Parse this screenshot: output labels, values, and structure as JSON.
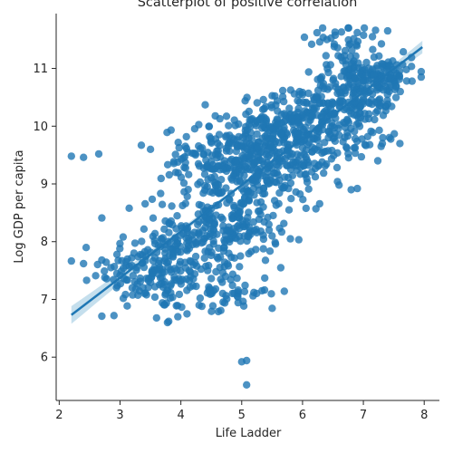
{
  "chart_data": {
    "type": "scatter",
    "title": "Scatterplot of positive correlation",
    "xlabel": "Life Ladder",
    "ylabel": "Log GDP per capita",
    "xlim": [
      1.95,
      8.25
    ],
    "ylim": [
      5.25,
      11.95
    ],
    "xticks": [
      2,
      3,
      4,
      5,
      6,
      7,
      8
    ],
    "yticks": [
      6,
      7,
      8,
      9,
      10,
      11
    ],
    "grid": false,
    "legend": "none",
    "point_color": "#1f77b4",
    "regression": {
      "x": [
        2.2,
        7.97
      ],
      "y": [
        6.73,
        11.37
      ],
      "ci_color": "#9ecae1"
    },
    "clusters": [
      {
        "cx": 3.6,
        "cy": 7.5,
        "sx": 0.45,
        "sy": 0.35,
        "n": 160
      },
      {
        "cx": 4.4,
        "cy": 8.2,
        "sx": 0.4,
        "sy": 0.45,
        "n": 170
      },
      {
        "cx": 5.1,
        "cy": 8.6,
        "sx": 0.3,
        "sy": 0.5,
        "n": 140
      },
      {
        "cx": 4.5,
        "cy": 9.4,
        "sx": 0.4,
        "sy": 0.3,
        "n": 110
      },
      {
        "cx": 5.3,
        "cy": 9.6,
        "sx": 0.35,
        "sy": 0.35,
        "n": 170
      },
      {
        "cx": 5.9,
        "cy": 9.3,
        "sx": 0.3,
        "sy": 0.4,
        "n": 90
      },
      {
        "cx": 6.0,
        "cy": 10.1,
        "sx": 0.4,
        "sy": 0.3,
        "n": 170
      },
      {
        "cx": 6.8,
        "cy": 10.6,
        "sx": 0.35,
        "sy": 0.3,
        "n": 150
      },
      {
        "cx": 7.3,
        "cy": 10.85,
        "sx": 0.25,
        "sy": 0.22,
        "n": 110
      },
      {
        "cx": 7.0,
        "cy": 9.8,
        "sx": 0.3,
        "sy": 0.15,
        "n": 40
      },
      {
        "cx": 4.7,
        "cy": 7.1,
        "sx": 0.35,
        "sy": 0.2,
        "n": 50
      },
      {
        "cx": 6.7,
        "cy": 11.45,
        "sx": 0.3,
        "sy": 0.15,
        "n": 30
      }
    ],
    "outliers": [
      {
        "x": 2.2,
        "y": 9.48
      },
      {
        "x": 2.4,
        "y": 9.46
      },
      {
        "x": 2.65,
        "y": 9.52
      },
      {
        "x": 2.7,
        "y": 8.41
      },
      {
        "x": 2.7,
        "y": 6.71
      },
      {
        "x": 2.9,
        "y": 6.72
      },
      {
        "x": 2.4,
        "y": 7.62
      },
      {
        "x": 2.45,
        "y": 7.33
      },
      {
        "x": 2.6,
        "y": 7.41
      },
      {
        "x": 2.7,
        "y": 7.68
      },
      {
        "x": 2.75,
        "y": 7.38
      },
      {
        "x": 2.85,
        "y": 7.55
      },
      {
        "x": 2.95,
        "y": 7.78
      },
      {
        "x": 3.0,
        "y": 7.42
      },
      {
        "x": 3.1,
        "y": 7.65
      },
      {
        "x": 3.35,
        "y": 9.67
      },
      {
        "x": 3.5,
        "y": 9.6
      },
      {
        "x": 3.15,
        "y": 8.58
      },
      {
        "x": 3.05,
        "y": 8.08
      },
      {
        "x": 3.2,
        "y": 7.2
      },
      {
        "x": 4.4,
        "y": 10.37
      },
      {
        "x": 4.3,
        "y": 6.9
      },
      {
        "x": 4.1,
        "y": 6.75
      },
      {
        "x": 3.6,
        "y": 6.68
      },
      {
        "x": 3.8,
        "y": 6.62
      },
      {
        "x": 3.95,
        "y": 6.7
      },
      {
        "x": 5.0,
        "y": 5.92
      },
      {
        "x": 5.08,
        "y": 5.94
      },
      {
        "x": 5.08,
        "y": 5.52
      },
      {
        "x": 5.7,
        "y": 7.14
      },
      {
        "x": 5.2,
        "y": 7.12
      },
      {
        "x": 6.15,
        "y": 11.42
      },
      {
        "x": 6.4,
        "y": 11.5
      },
      {
        "x": 6.9,
        "y": 11.62
      },
      {
        "x": 7.15,
        "y": 11.55
      },
      {
        "x": 7.4,
        "y": 11.65
      },
      {
        "x": 7.6,
        "y": 9.7
      },
      {
        "x": 7.95,
        "y": 10.85
      },
      {
        "x": 7.8,
        "y": 10.78
      },
      {
        "x": 6.8,
        "y": 8.9
      },
      {
        "x": 6.9,
        "y": 8.92
      },
      {
        "x": 6.6,
        "y": 8.98
      },
      {
        "x": 5.8,
        "y": 8.05
      },
      {
        "x": 5.45,
        "y": 8.2
      }
    ]
  }
}
